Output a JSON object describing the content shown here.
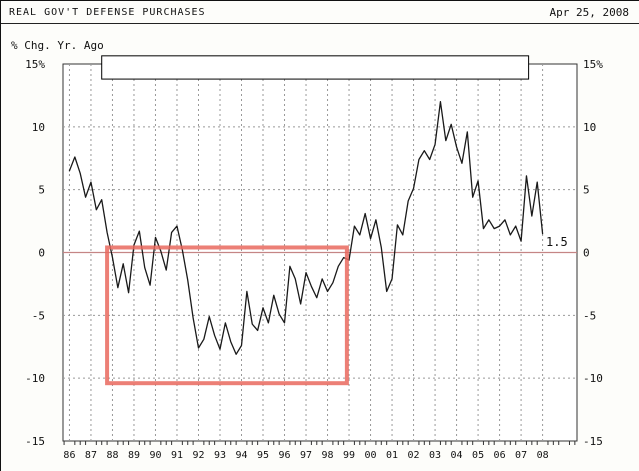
{
  "header": {
    "title": "REAL GOV'T DEFENSE PURCHASES",
    "date": "Apr 25, 2008"
  },
  "chart_data": {
    "type": "line",
    "title": "REAL GOV'T DEFENSE PURCHASES",
    "ylabel": "% Chg. Yr. Ago",
    "frequency": "quarterly",
    "x_start_year": 1986,
    "x_step": 0.25,
    "values": [
      6.5,
      7.6,
      6.3,
      4.4,
      5.6,
      3.4,
      4.2,
      1.6,
      -0.4,
      -2.8,
      -0.9,
      -3.2,
      0.6,
      1.7,
      -1.2,
      -2.6,
      1.2,
      0.1,
      -1.4,
      1.6,
      2.1,
      0.2,
      -2.2,
      -5.2,
      -7.6,
      -6.9,
      -5.1,
      -6.6,
      -7.7,
      -5.6,
      -7.1,
      -8.1,
      -7.4,
      -3.1,
      -5.7,
      -6.2,
      -4.4,
      -5.6,
      -3.4,
      -4.9,
      -5.6,
      -1.1,
      -2.1,
      -4.1,
      -1.6,
      -2.7,
      -3.6,
      -2.1,
      -3.1,
      -2.4,
      -1.1,
      -0.4,
      -0.6,
      2.1,
      1.4,
      3.1,
      1.1,
      2.6,
      0.4,
      -3.1,
      -2.1,
      2.2,
      1.4,
      4.1,
      5.1,
      7.4,
      8.1,
      7.4,
      8.6,
      12.0,
      8.9,
      10.2,
      8.4,
      7.1,
      9.6,
      4.4,
      5.7,
      1.9,
      2.6,
      1.9,
      2.1,
      2.6,
      1.4,
      2.1,
      0.9,
      6.1,
      2.9,
      5.6,
      1.5
    ],
    "end_label": "1.5",
    "xlim": [
      1985.7,
      2009.6
    ],
    "ylim": [
      -15,
      15
    ],
    "ytick_values": [
      15,
      10,
      5,
      0,
      -5,
      -10,
      -15
    ],
    "ytick_labels_left": [
      "15%",
      "10",
      "5",
      "0",
      "-5",
      "-10",
      "-15"
    ],
    "ytick_labels_right": [
      "15%",
      "10",
      "5",
      "0",
      "-5",
      "-10",
      "-15"
    ],
    "year_start": 1986,
    "year_labels": [
      "86",
      "87",
      "88",
      "89",
      "90",
      "91",
      "92",
      "93",
      "94",
      "95",
      "96",
      "97",
      "98",
      "99",
      "00",
      "01",
      "02",
      "03",
      "04",
      "05",
      "06",
      "07",
      "08"
    ],
    "h_gridline_values": [
      10,
      5,
      -5,
      -10
    ],
    "grid": true,
    "legend_position": "none",
    "line_color": "#1a1a1a",
    "grid_color": "#999999",
    "zero_line_color": "#c58585",
    "annotations": {
      "blank_box": {
        "x1": 1987.5,
        "x2": 2007.35,
        "y1": 15.65,
        "y2": 13.8,
        "fill": "#ffffff",
        "border": "#000000"
      },
      "highlight_box": {
        "x1": 1987.75,
        "x2": 1998.9,
        "y1": 0.4,
        "y2": -10.4,
        "color": "#e9695e",
        "stroke_width": 4
      }
    }
  }
}
